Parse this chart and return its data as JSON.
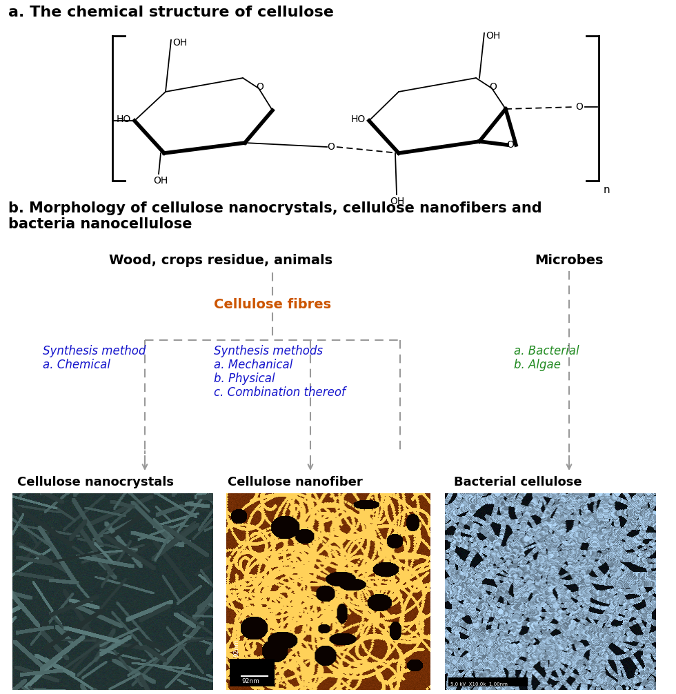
{
  "title_a": "a. The chemical structure of cellulose",
  "title_b": "b. Morphology of cellulose nanocrystals, cellulose nanofibers and\nbacteria nanocellulose",
  "wood_label": "Wood, crops residue, animals",
  "microbes_label": "Microbes",
  "cellulose_fibres": "Cellulose fibres",
  "synthesis_left_title": "Synthesis method",
  "synthesis_left_body": "a. Chemical",
  "synthesis_mid_title": "Synthesis methods",
  "synthesis_mid_body": "a. Mechanical\nb. Physical\nc. Combination thereof",
  "synthesis_right_line1": "a. Bacterial",
  "synthesis_right_line2": "b. Algae",
  "bottom_label1": "Cellulose nanocrystals",
  "bottom_label2": "Cellulose nanofiber",
  "bottom_label3": "Bacterial cellulose",
  "color_blue": "#1515CC",
  "color_green": "#228B22",
  "color_orange": "#CC5500",
  "bg_color": "#ffffff",
  "arrow_color": "#999999",
  "n_label": "n"
}
